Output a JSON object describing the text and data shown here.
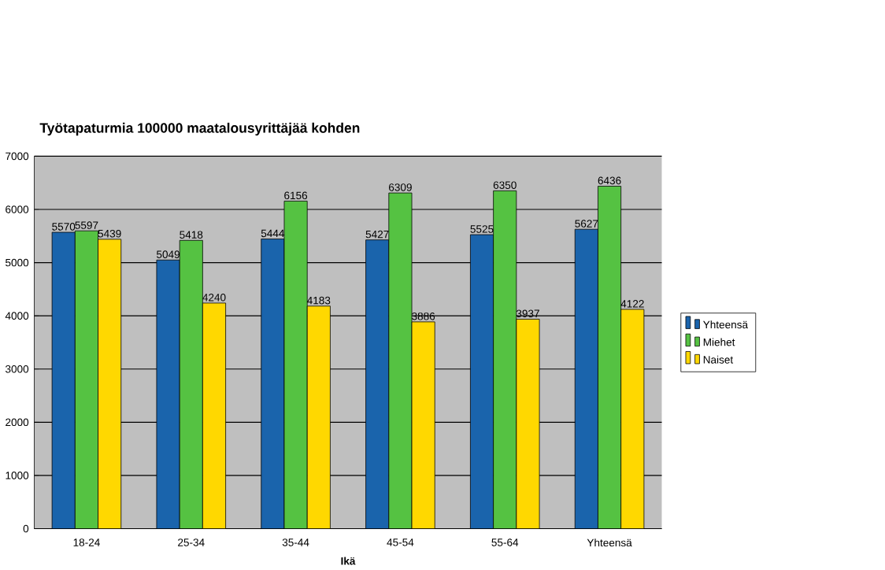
{
  "chart_data": {
    "type": "bar",
    "title": "Työtapaturmia 100000 maatalousyrittäjää kohden",
    "xlabel": "Ikä",
    "categories": [
      "18-24",
      "25-34",
      "35-44",
      "45-54",
      "55-64",
      "Yhteensä"
    ],
    "series": [
      {
        "name": "Yhteensä",
        "color": "#1a64ac",
        "values": [
          5570,
          5049,
          5444,
          5427,
          5525,
          5627
        ]
      },
      {
        "name": "Miehet",
        "color": "#55c242",
        "values": [
          5597,
          5418,
          6156,
          6309,
          6350,
          6436
        ]
      },
      {
        "name": "Naiset",
        "color": "#ffd800",
        "values": [
          5439,
          4240,
          4183,
          3886,
          3937,
          4122
        ]
      }
    ],
    "ylim": [
      0,
      7000
    ],
    "yticks": [
      0,
      1000,
      2000,
      3000,
      4000,
      5000,
      6000,
      7000
    ],
    "grid": "y",
    "legend": "right",
    "data_labels": true
  }
}
